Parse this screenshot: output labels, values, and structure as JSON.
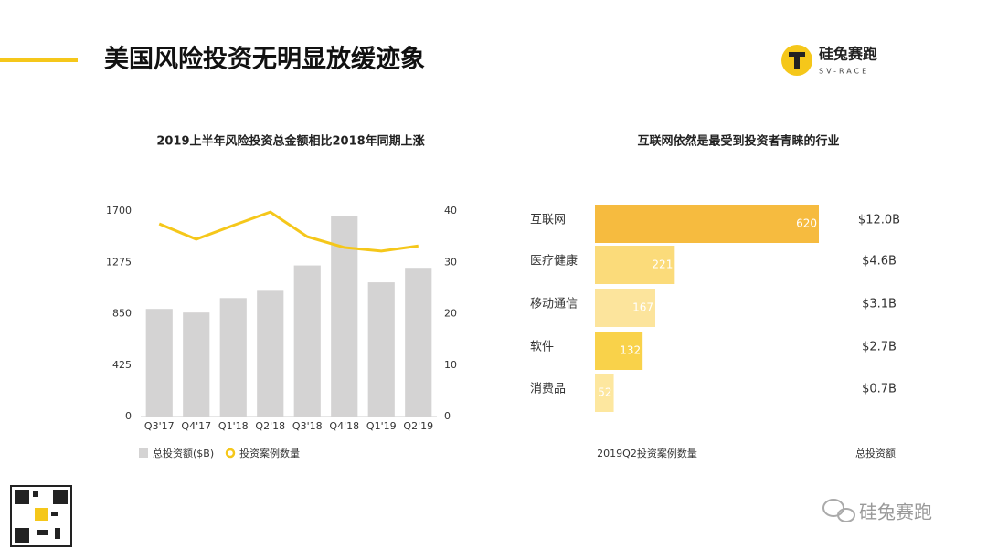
{
  "header": {
    "title": "美国风险投资无明显放缓迹象",
    "logo_name": "硅兔赛跑",
    "logo_sub": "SV-RACE"
  },
  "chart_data": [
    {
      "type": "bar",
      "title": "2019上半年风险投资总金额相比2018年同期上涨",
      "categories": [
        "Q3'17",
        "Q4'17",
        "Q1'18",
        "Q2'18",
        "Q3'18",
        "Q4'18",
        "Q1'19",
        "Q2'19"
      ],
      "series": [
        {
          "name": "总投资额($B)",
          "color": "#d4d3d3",
          "values": [
            890,
            860,
            980,
            1040,
            1250,
            1660,
            1110,
            1230
          ]
        },
        {
          "name": "投资案例数量",
          "color": "#f5c71a",
          "type": "line",
          "axis": "y2",
          "values": [
            37.5,
            34.5,
            37.2,
            39.8,
            35,
            32.9,
            32.2,
            33.2
          ]
        }
      ],
      "ylim": [
        0,
        1700
      ],
      "yticks": [
        0,
        425,
        850,
        1275,
        1700
      ],
      "y2lim": [
        0,
        40
      ],
      "y2ticks": [
        0,
        10,
        20,
        30,
        40
      ]
    },
    {
      "type": "hbar",
      "title": "互联网依然是最受到投资者青睐的行业",
      "categories": [
        "互联网",
        "医疗健康",
        "移动通信",
        "软件",
        "消费品"
      ],
      "series": [
        {
          "name": "2019Q2投资案例数量",
          "colors": [
            "#f6bb3f",
            "#fbdb7a",
            "#fce49c",
            "#f9d24a",
            "#fde79f"
          ],
          "values": [
            620,
            221,
            167,
            132,
            52
          ]
        },
        {
          "name": "总投资额",
          "values": [
            12.0,
            4.6,
            3.1,
            2.7,
            0.7
          ],
          "value_labels": [
            "$12.0B",
            "$4.6B",
            "$3.1B",
            "$2.7B",
            "$0.7B"
          ]
        }
      ]
    }
  ],
  "footer": {
    "watermark": "硅兔赛跑"
  }
}
